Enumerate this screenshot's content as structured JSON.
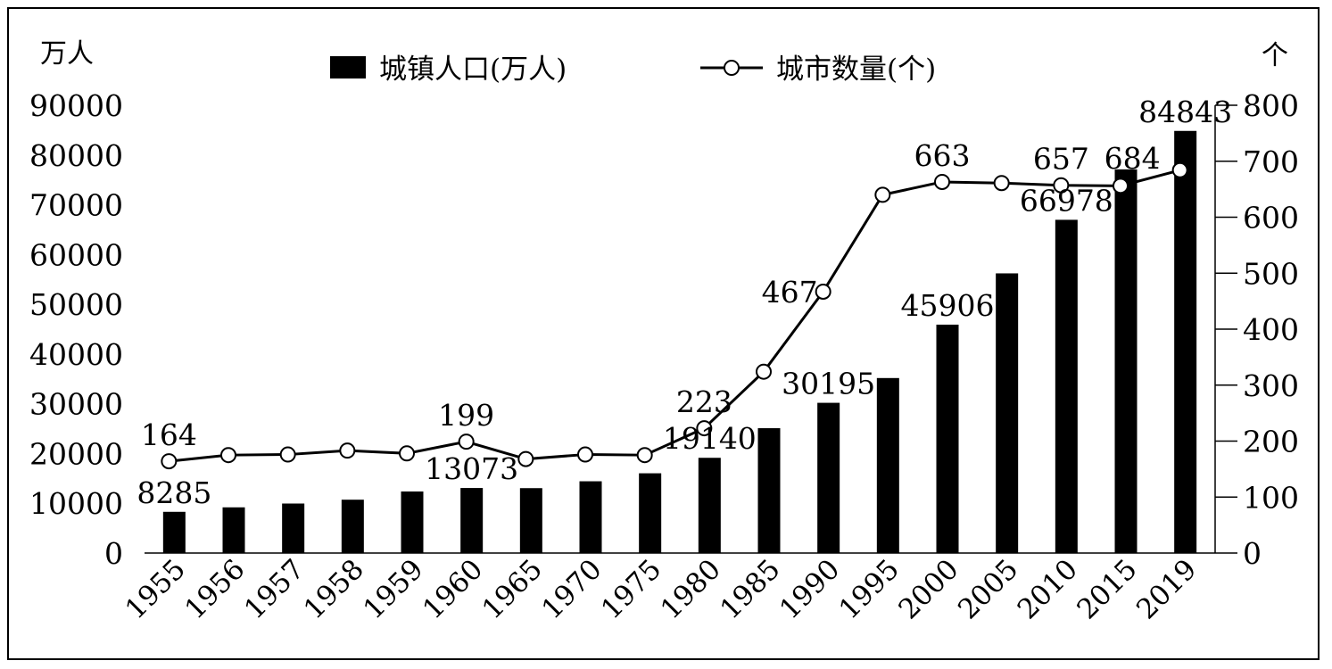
{
  "chart_data": {
    "type": "bar",
    "combo": "bar+line, dual y-axis",
    "categories": [
      "1955",
      "1956",
      "1957",
      "1958",
      "1959",
      "1960",
      "1965",
      "1970",
      "1975",
      "1980",
      "1985",
      "1990",
      "1995",
      "2000",
      "2005",
      "2010",
      "2015",
      "2019"
    ],
    "series": [
      {
        "name": "城镇人口(万人)",
        "type": "bar",
        "axis": "left",
        "values": [
          8285,
          9185,
          9949,
          10721,
          12371,
          13073,
          13045,
          14424,
          16030,
          19140,
          25094,
          30195,
          35174,
          45906,
          56212,
          66978,
          77116,
          84843
        ],
        "labels": {
          "0": "8285",
          "5": "13073",
          "9": "19140",
          "11": "30195",
          "13": "45906",
          "15": "66978",
          "17": "84843"
        }
      },
      {
        "name": "城市数量(个)",
        "type": "line",
        "axis": "right",
        "values": [
          164,
          175,
          176,
          183,
          178,
          199,
          168,
          176,
          175,
          223,
          324,
          467,
          640,
          663,
          661,
          657,
          656,
          684
        ],
        "labels": {
          "0": "164",
          "5": "199",
          "9": "223",
          "11": "467",
          "13": "663",
          "15": "657",
          "17": "684"
        }
      }
    ],
    "y_left": {
      "unit": "万人",
      "ticks": [
        "0",
        "10000",
        "20000",
        "30000",
        "40000",
        "50000",
        "60000",
        "70000",
        "80000",
        "90000"
      ],
      "ylim": [
        0,
        90000
      ]
    },
    "y_right": {
      "unit": "个",
      "ticks": [
        "0",
        "100",
        "200",
        "300",
        "400",
        "500",
        "600",
        "700",
        "800"
      ],
      "ylim": [
        0,
        800
      ]
    },
    "grid": false,
    "legend_position": "top"
  },
  "colors": {
    "bar": "#000000",
    "line": "#000000",
    "marker_fill": "#ffffff",
    "background": "#ffffff"
  }
}
